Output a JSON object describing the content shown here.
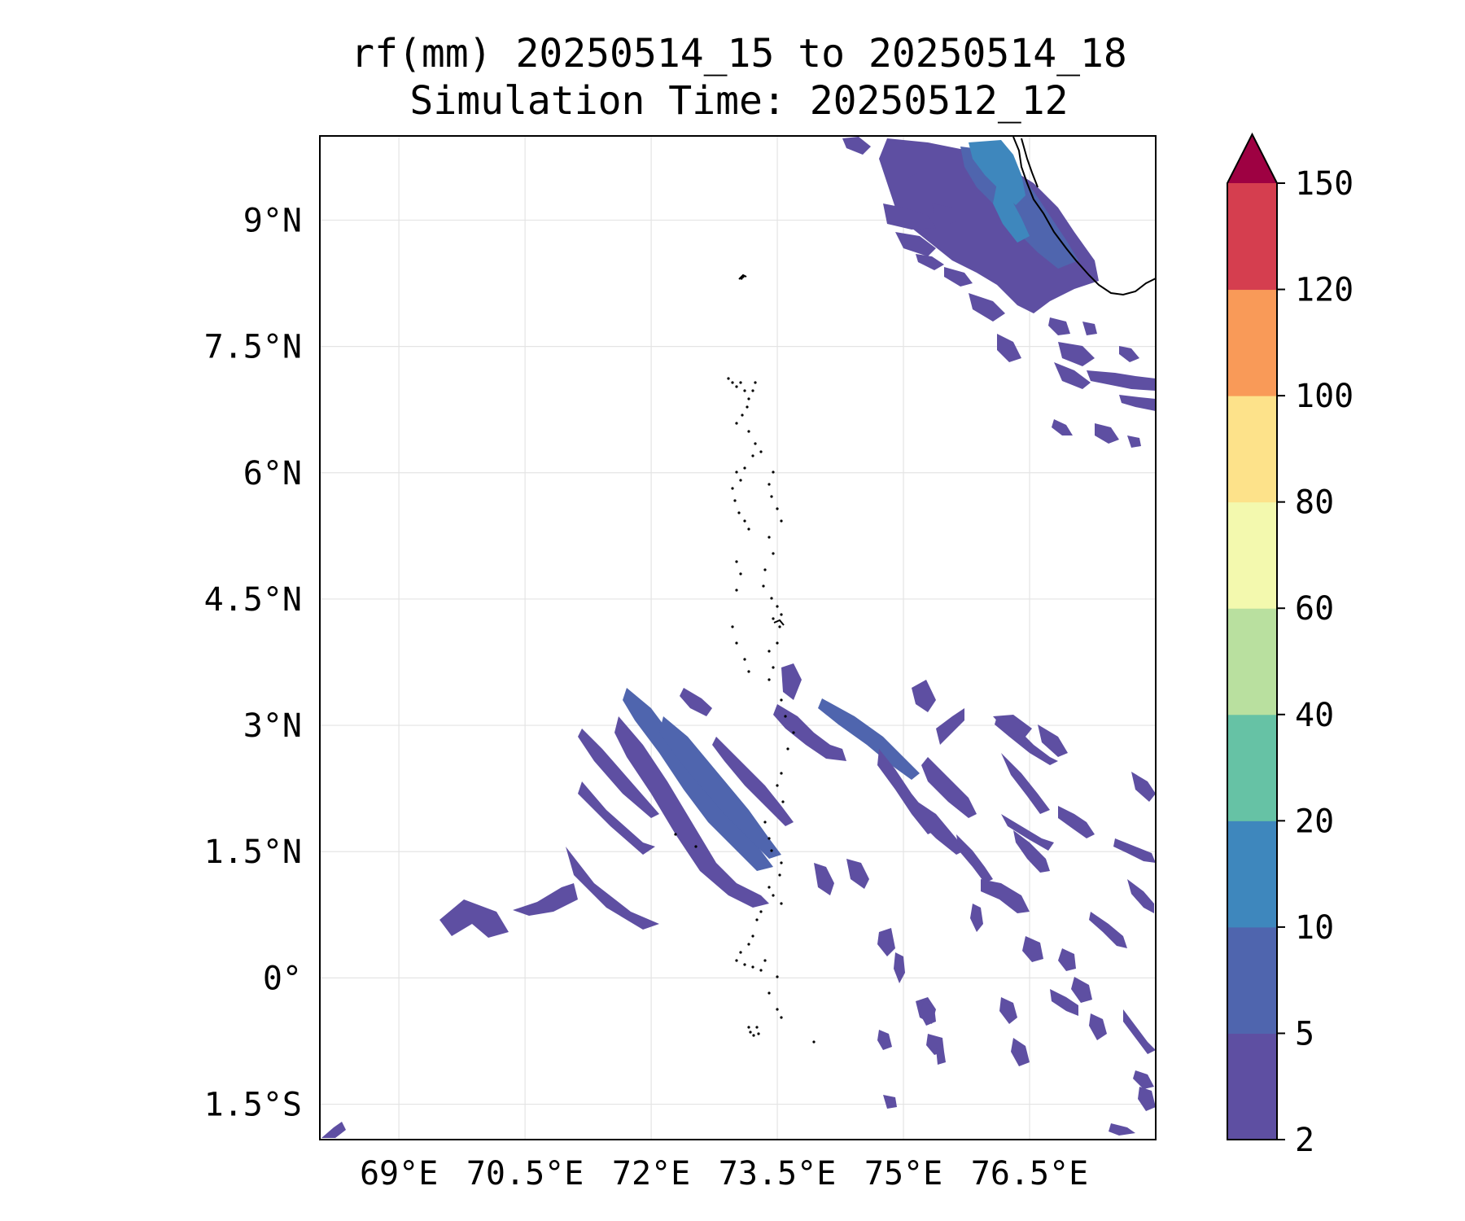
{
  "title": {
    "line1": "rf(mm) 20250514_15 to 20250514_18",
    "line2": "Simulation Time: 20250512_12"
  },
  "map": {
    "extent": {
      "lon_min": 68.06,
      "lon_max": 78.0,
      "lat_min": -1.92,
      "lat_max": 10.0
    },
    "lon_ticks": [
      {
        "value": 69,
        "label": "69°E"
      },
      {
        "value": 70.5,
        "label": "70.5°E"
      },
      {
        "value": 72,
        "label": "72°E"
      },
      {
        "value": 73.5,
        "label": "73.5°E"
      },
      {
        "value": 75,
        "label": "75°E"
      },
      {
        "value": 76.5,
        "label": "76.5°E"
      }
    ],
    "lat_ticks": [
      {
        "value": 9,
        "label": "9°N"
      },
      {
        "value": 7.5,
        "label": "7.5°N"
      },
      {
        "value": 6,
        "label": "6°N"
      },
      {
        "value": 4.5,
        "label": "4.5°N"
      },
      {
        "value": 3,
        "label": "3°N"
      },
      {
        "value": 1.5,
        "label": "1.5°N"
      },
      {
        "value": 0,
        "label": "0°"
      },
      {
        "value": -1.5,
        "label": "1.5°S"
      }
    ],
    "gridlines": true
  },
  "colorbar": {
    "levels": [
      "2",
      "5",
      "10",
      "20",
      "40",
      "60",
      "80",
      "100",
      "120",
      "150"
    ],
    "colors": [
      "#5e4fa2",
      "#4f65ae",
      "#3e87bd",
      "#66c2a5",
      "#b9e09f",
      "#f3f9ae",
      "#fde28a",
      "#f99a58",
      "#d53e4f"
    ],
    "extend_color": "#9e0142",
    "extend": "max"
  },
  "colors": {
    "light_rain": "#5e4fa2",
    "moderate_rain": "#4f65ae",
    "heavier_rain": "#3e87bd",
    "coastline": "#000000"
  }
}
